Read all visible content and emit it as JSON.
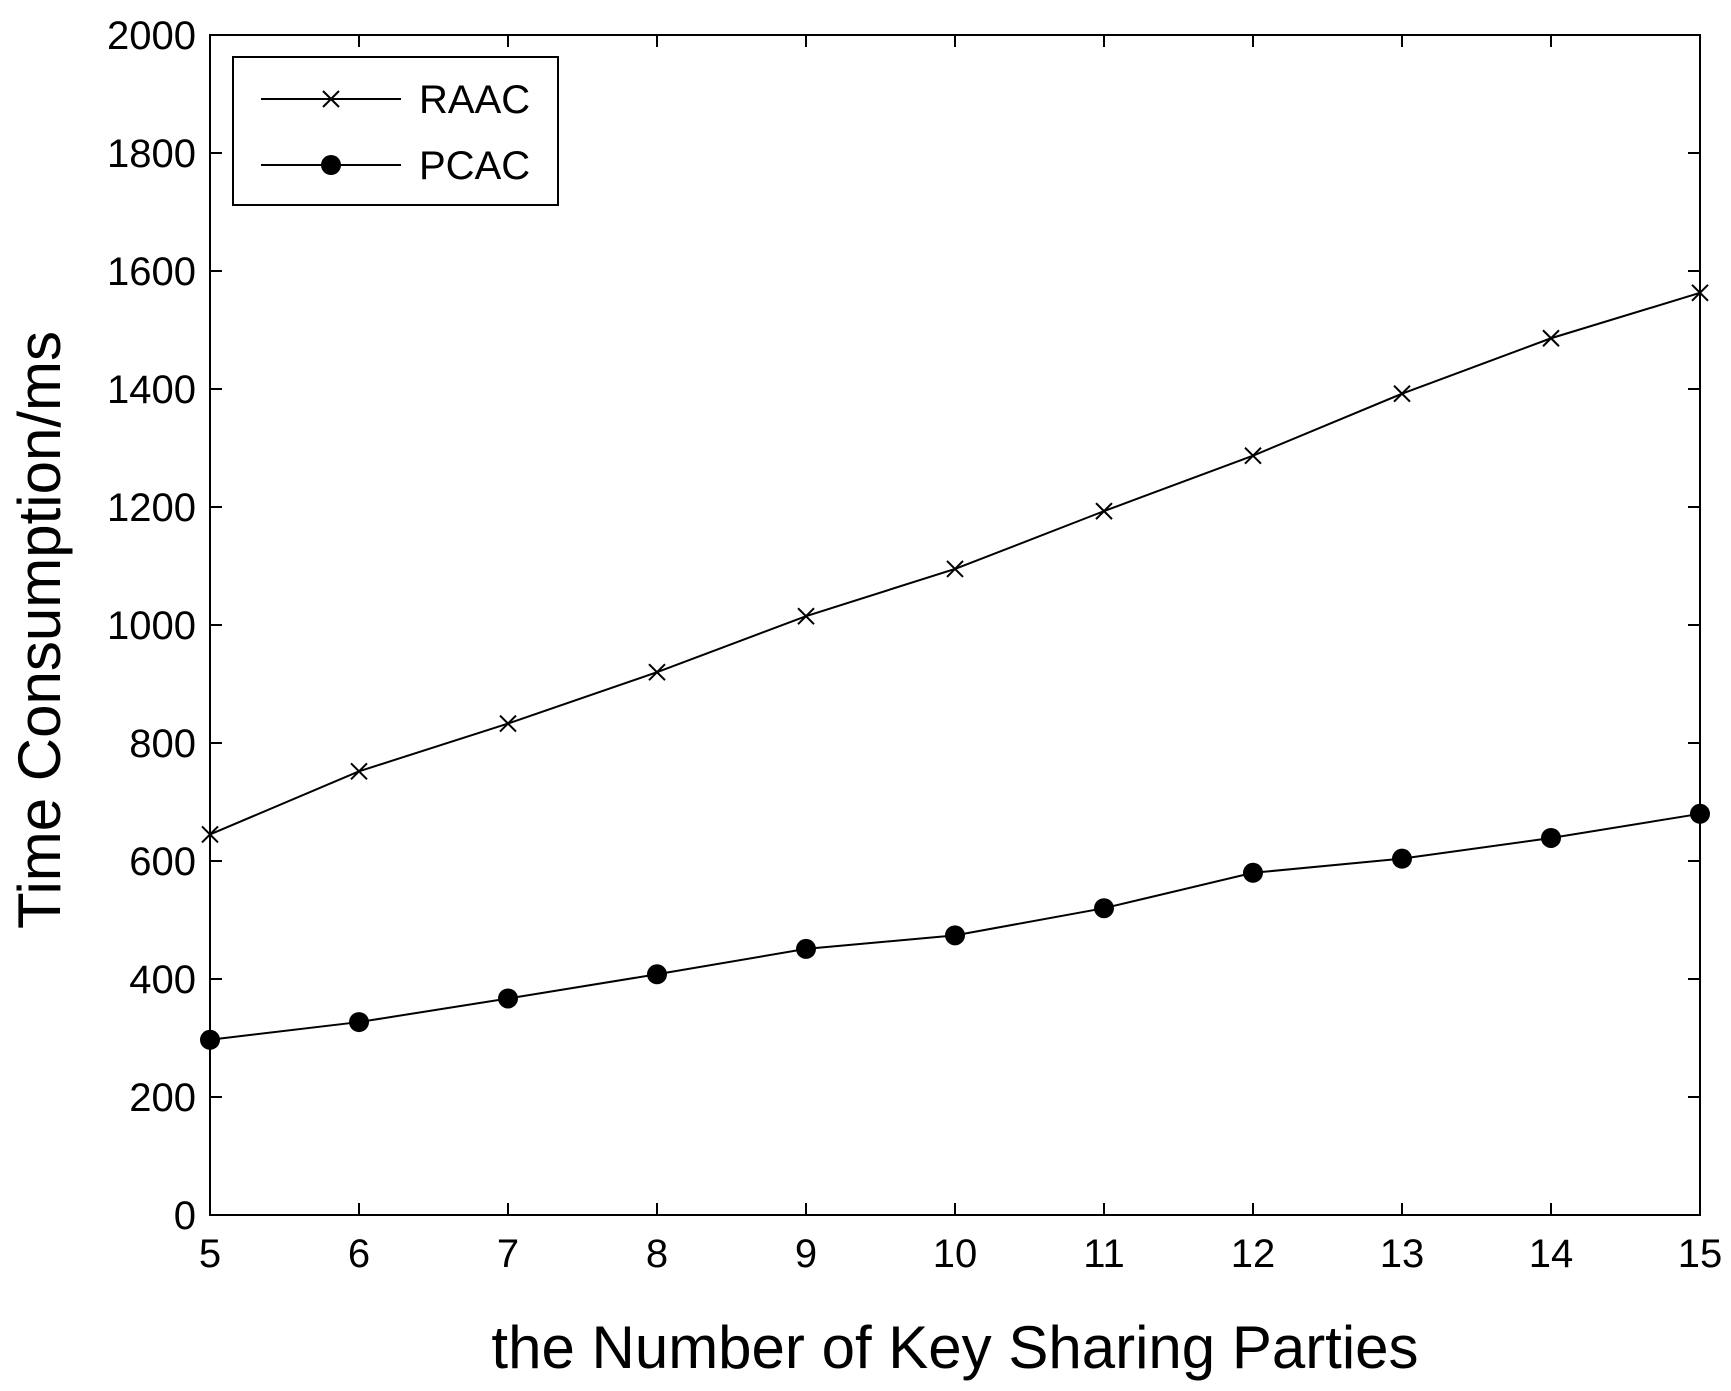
{
  "chart_data": {
    "type": "line",
    "title": "",
    "xlabel": "the Number of Key Sharing Parties",
    "ylabel": "Time Consumption/ms",
    "x": [
      5,
      6,
      7,
      8,
      9,
      10,
      11,
      12,
      13,
      14,
      15
    ],
    "xlim": [
      5,
      15
    ],
    "ylim": [
      0,
      2000
    ],
    "xticks": [
      5,
      6,
      7,
      8,
      9,
      10,
      11,
      12,
      13,
      14,
      15
    ],
    "yticks": [
      0,
      200,
      400,
      600,
      800,
      1000,
      1200,
      1400,
      1600,
      1800,
      2000
    ],
    "grid": false,
    "legend_position": "top-left",
    "series": [
      {
        "name": "RAAC",
        "marker": "x",
        "color": "#000000",
        "values": [
          645,
          752,
          833,
          920,
          1015,
          1095,
          1193,
          1287,
          1392,
          1486,
          1563
        ]
      },
      {
        "name": "PCAC",
        "marker": "filled-circle",
        "color": "#000000",
        "values": [
          297,
          327,
          367,
          408,
          451,
          474,
          520,
          580,
          604,
          639,
          680
        ]
      }
    ]
  }
}
